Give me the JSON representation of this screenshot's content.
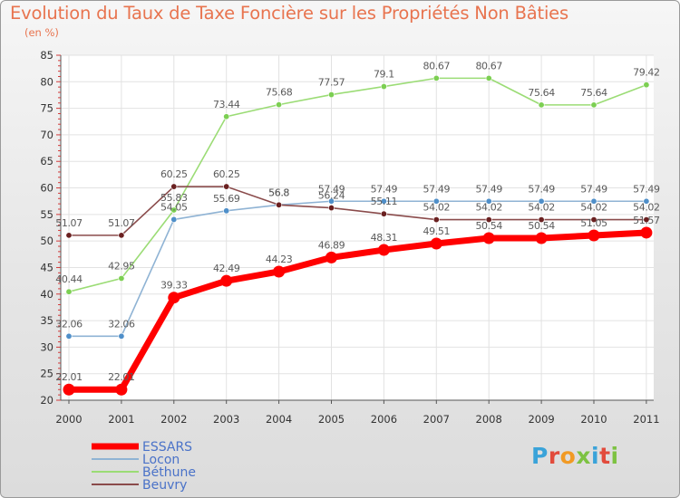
{
  "title": "Evolution du Taux de Taxe Foncière sur les Propriétés Non Bâties",
  "unit": "(en %)",
  "logo": {
    "text": "Proxiti",
    "letter_colors": [
      "#3aa3d9",
      "#e24b3c",
      "#f19a24",
      "#7dc242",
      "#3aa3d9",
      "#e24b3c",
      "#7dc242"
    ]
  },
  "chart_data": {
    "type": "line",
    "title": "Evolution du Taux de Taxe Foncière sur les Propriétés Non Bâties",
    "ylabel": "(en %)",
    "xlabel": "",
    "x": [
      "2000",
      "2001",
      "2002",
      "2003",
      "2004",
      "2005",
      "2006",
      "2007",
      "2008",
      "2009",
      "2010",
      "2011"
    ],
    "ylim": [
      20,
      85
    ],
    "yticks": [
      20,
      25,
      30,
      35,
      40,
      45,
      50,
      55,
      60,
      65,
      70,
      75,
      80,
      85
    ],
    "grid": true,
    "legend": "bottom-left",
    "series": [
      {
        "name": "Béthune",
        "color": "#9bdc75",
        "marker": "#7ccf52",
        "values": [
          40.44,
          42.95,
          55.83,
          73.44,
          75.68,
          77.57,
          79.1,
          80.67,
          80.67,
          75.64,
          75.64,
          79.42
        ],
        "labels": [
          "40.44",
          "42.95",
          "55.83",
          "73.44",
          "75.68",
          "77.57",
          "79.1",
          "80.67",
          "80.67",
          "75.64",
          "75.64",
          "79.42"
        ]
      },
      {
        "name": "Locon",
        "color": "#8fb3d4",
        "marker": "#4f8fc9",
        "values": [
          32.06,
          32.06,
          54.05,
          55.69,
          56.8,
          57.49,
          57.49,
          57.49,
          57.49,
          57.49,
          57.49,
          57.49
        ],
        "labels": [
          "32.06",
          "32.06",
          "54.05",
          "55.69",
          "56.8",
          "57.49",
          "57.49",
          "57.49",
          "57.49",
          "57.49",
          "57.49",
          "57.49"
        ]
      },
      {
        "name": "Beuvry",
        "color": "#8a4b4b",
        "marker": "#6a2020",
        "values": [
          51.07,
          51.07,
          60.25,
          60.25,
          56.8,
          56.24,
          55.11,
          54.02,
          54.02,
          54.02,
          54.02,
          54.02
        ],
        "labels": [
          "51.07",
          "51.07",
          "60.25",
          "60.25",
          "56.8",
          "56.24",
          "55.11",
          "54.02",
          "54.02",
          "54.02",
          "54.02",
          "54.02"
        ]
      },
      {
        "name": "ESSARS",
        "color": "#ff0000",
        "marker": "#ff0000",
        "values": [
          22.01,
          22.01,
          39.33,
          42.49,
          44.23,
          46.89,
          48.31,
          49.51,
          50.54,
          50.54,
          51.05,
          51.57
        ],
        "labels": [
          "22.01",
          "22.01",
          "39.33",
          "42.49",
          "44.23",
          "46.89",
          "48.31",
          "49.51",
          "50.54",
          "50.54",
          "51.05",
          "51.57"
        ]
      }
    ],
    "legend_entries": [
      {
        "name": "ESSARS",
        "color": "#ff0000"
      },
      {
        "name": "Locon",
        "color": "#8fb3d4"
      },
      {
        "name": "Béthune",
        "color": "#9bdc75"
      },
      {
        "name": "Beuvry",
        "color": "#8a4b4b"
      }
    ]
  }
}
